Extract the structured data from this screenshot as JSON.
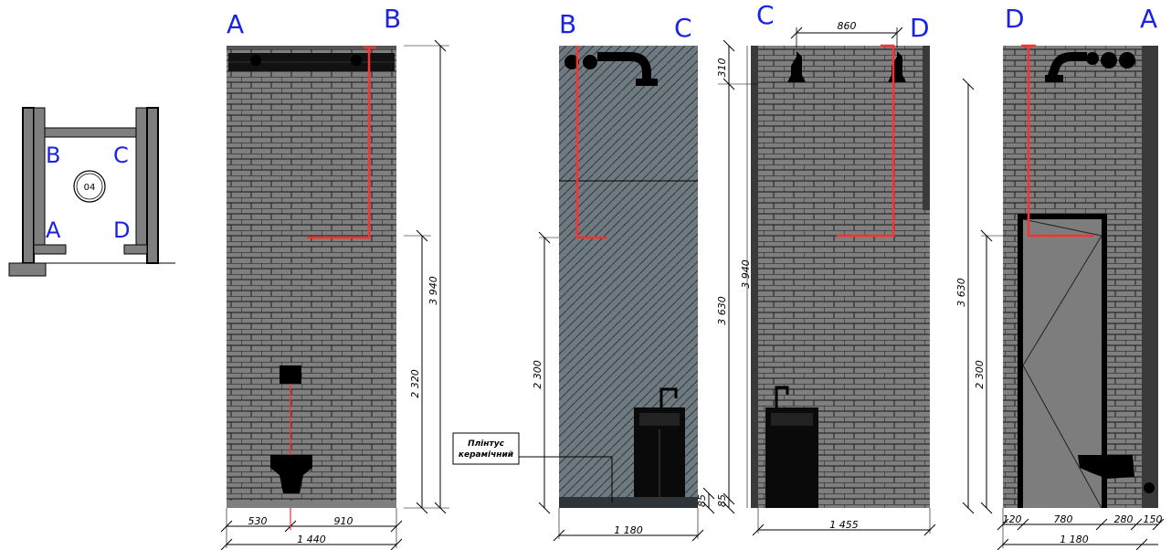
{
  "plan": {
    "room_number": "04",
    "labels": {
      "b": "B",
      "c": "C",
      "a": "A",
      "d": "D"
    }
  },
  "elevations": [
    {
      "corner_left": "A",
      "corner_right": "B",
      "height_total": "3 940",
      "height_shower": "2 320",
      "widths": [
        "530",
        "910"
      ],
      "width_total": "1 440"
    },
    {
      "corner_left": "B",
      "corner_right": "C",
      "height_shower": "2 300",
      "height_plinth": "85",
      "width_total": "1 180",
      "note_line1": "Плінтус",
      "note_line2": "керамічний"
    },
    {
      "corner_left": "C",
      "corner_right": "D",
      "top_width": "860",
      "height_top": "310",
      "height_main": "3 630",
      "height_total": "3 940",
      "height_plinth": "85",
      "width_total": "1 455"
    },
    {
      "corner_left": "D",
      "corner_right": "A",
      "height_main": "3 630",
      "height_shower": "2 300",
      "widths": [
        "120",
        "780",
        "280",
        "150"
      ],
      "width_total": "1 180"
    }
  ],
  "colors": {
    "wall": "#7f7f7f",
    "tile": "#6f7a80",
    "mortar": "#2a2a2a",
    "pipe_red": "#ff3030",
    "label_blue": "#1a22e6"
  }
}
